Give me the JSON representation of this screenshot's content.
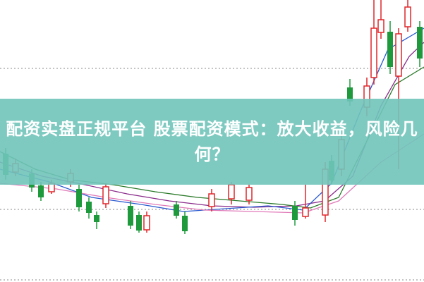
{
  "banner": {
    "title": "配资实盘正规平台 股票配资模式：放大收益，风险几何？"
  }
}
